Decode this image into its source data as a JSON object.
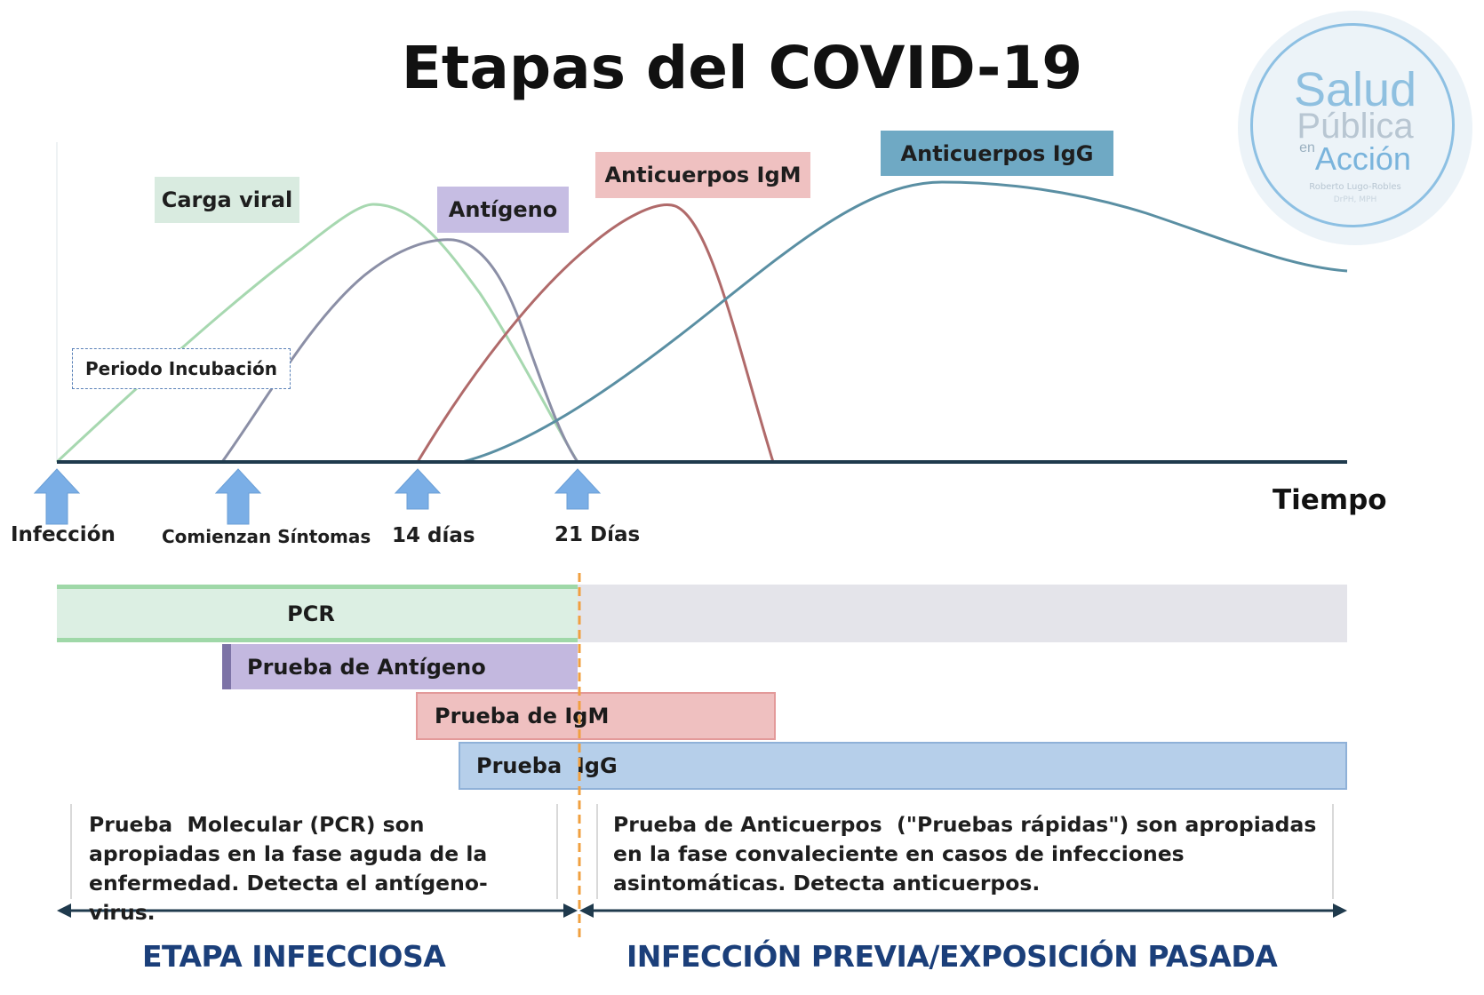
{
  "title": "Etapas del COVID-19",
  "curve_labels": {
    "viral": "Carga viral",
    "antigen": "Antígeno",
    "igm": "Anticuerpos IgM",
    "igg": "Anticuerpos IgG",
    "incubation": "Periodo Incubación"
  },
  "timeline": {
    "infeccion": "Infección",
    "sintomas": "Comienzan Síntomas",
    "dia14": "14 días",
    "dia21": "21 Días",
    "axis_label": "Tiempo"
  },
  "tests": {
    "pcr": "PCR",
    "antigen": "Prueba de Antígeno",
    "igm": "Prueba de IgM",
    "igg": "Prueba  IgG"
  },
  "descriptions": {
    "left": "Prueba  Molecular (PCR) son apropiadas en la fase aguda de la enfermedad. Detecta el antígeno- virus.",
    "right": "Prueba de Anticuerpos  (\"Pruebas rápidas\") son apropiadas en la fase convaleciente en casos de infecciones asintomáticas. Detecta anticuerpos."
  },
  "phases": {
    "left": "ETAPA INFECCIOSA",
    "right": "INFECCIÓN PREVIA/EXPOSICIÓN PASADA"
  },
  "logo": {
    "line1": "Salud",
    "line2": "Pública",
    "line3_prefix": "en",
    "line3": "Acción",
    "line4": "Roberto Lugo-Robles",
    "line5": "DrPH, MPH"
  },
  "colors": {
    "viral_curve": "#a7d8b0",
    "antigen_curve": "#8b8fa6",
    "igm_curve": "#b06a6a",
    "igg_curve": "#5a8fa3",
    "axis": "#1f3a4d",
    "arrow": "#7aaee6",
    "dashed_divider": "#f0a040",
    "phase_text": "#1b3f7a"
  }
}
